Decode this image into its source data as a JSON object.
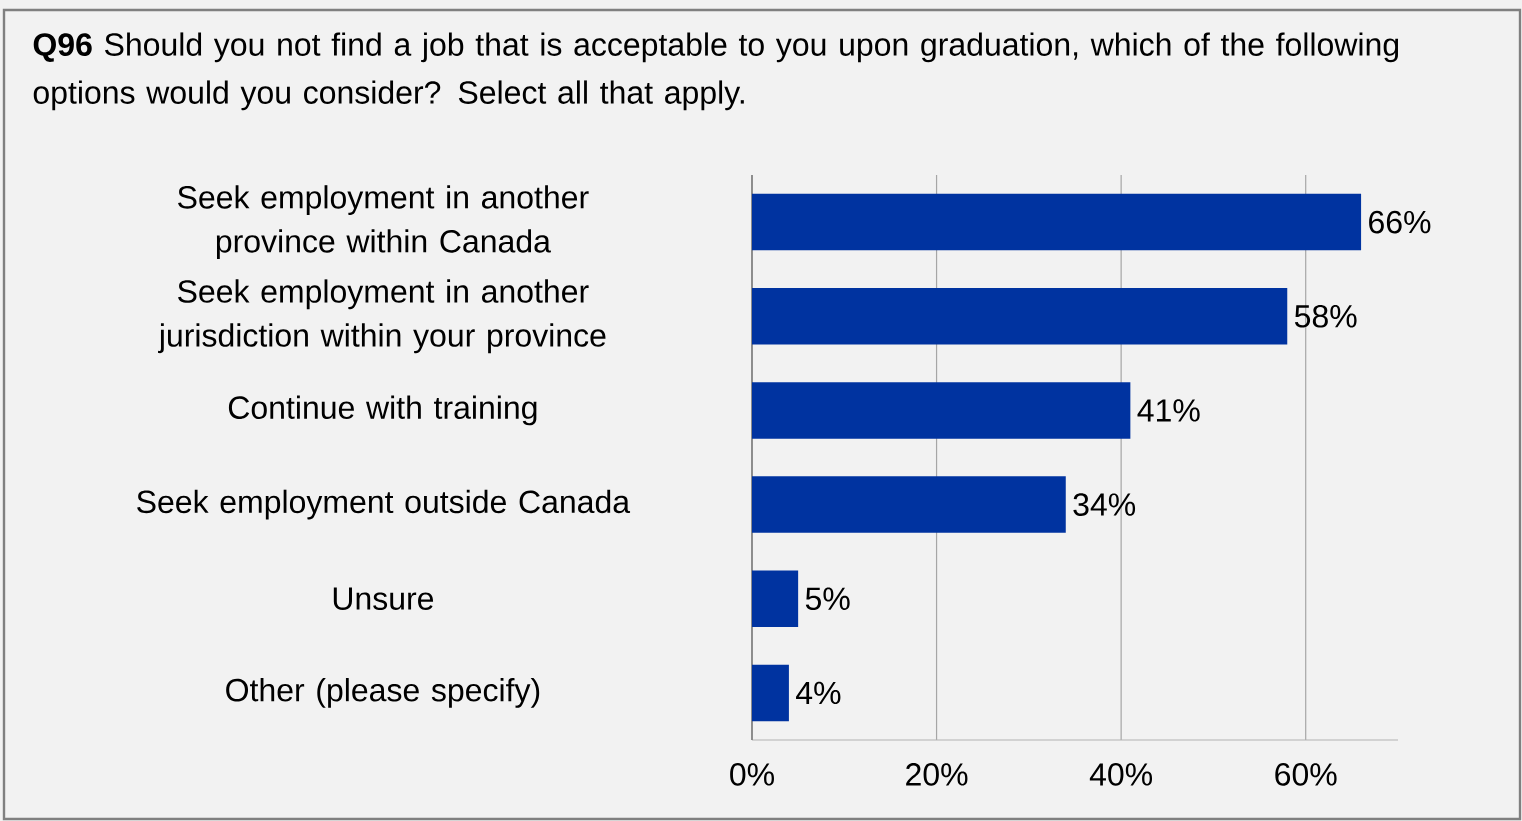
{
  "chart_data": {
    "type": "bar",
    "orientation": "horizontal",
    "title": "**Q96** Should you not find a job that is acceptable to you upon graduation, which of the following options would you consider?  Select all that apply.",
    "categories": [
      "Seek employment in another province within Canada",
      "Seek employment in another jurisdiction within your province",
      "Continue with training",
      "Seek employment outside Canada",
      "Unsure",
      "Other (please specify)"
    ],
    "values": [
      66,
      58,
      41,
      34,
      5,
      4
    ],
    "value_labels": [
      "66%",
      "58%",
      "41%",
      "34%",
      "5%",
      "4%"
    ],
    "color": "#0033a0",
    "xlim": [
      0,
      70
    ],
    "xticks": [
      {
        "value": 0,
        "label": "0%"
      },
      {
        "value": 20,
        "label": "20%"
      },
      {
        "value": 40,
        "label": "40%"
      },
      {
        "value": 60,
        "label": "60%"
      }
    ],
    "grid": "x"
  }
}
